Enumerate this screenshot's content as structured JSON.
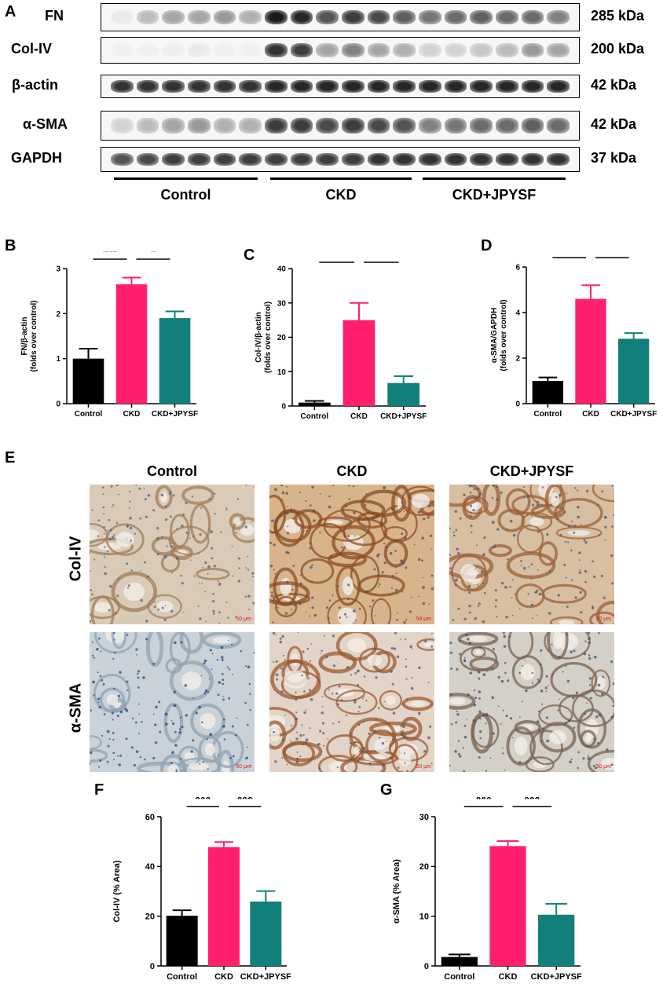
{
  "panels": {
    "A": "A",
    "B": "B",
    "C": "C",
    "D": "D",
    "E": "E",
    "F": "F",
    "G": "G"
  },
  "western": {
    "rows": [
      {
        "label": "FN",
        "kda": "285 kDa",
        "intensity": [
          0.05,
          0.25,
          0.35,
          0.35,
          0.4,
          0.3,
          0.95,
          0.9,
          0.7,
          0.8,
          0.75,
          0.65,
          0.55,
          0.6,
          0.65,
          0.6,
          0.6,
          0.5
        ]
      },
      {
        "label": "Col-IV",
        "kda": "200 kDa",
        "intensity": [
          0.02,
          0.02,
          0.03,
          0.05,
          0.02,
          0.02,
          0.85,
          0.8,
          0.35,
          0.5,
          0.35,
          0.3,
          0.15,
          0.15,
          0.2,
          0.25,
          0.4,
          0.35
        ]
      },
      {
        "label": "β-actin",
        "kda": "42 kDa",
        "intensity": [
          0.85,
          0.85,
          0.85,
          0.85,
          0.85,
          0.85,
          0.9,
          0.9,
          0.9,
          0.9,
          0.9,
          0.9,
          0.9,
          0.9,
          0.9,
          0.9,
          0.9,
          0.9
        ]
      },
      {
        "label": "α-SMA",
        "kda": "42 kDa",
        "intensity": [
          0.15,
          0.25,
          0.35,
          0.4,
          0.3,
          0.3,
          0.8,
          0.8,
          0.75,
          0.8,
          0.75,
          0.7,
          0.5,
          0.55,
          0.6,
          0.6,
          0.65,
          0.6
        ]
      },
      {
        "label": "GAPDH",
        "kda": "37 kDa",
        "intensity": [
          0.7,
          0.75,
          0.8,
          0.8,
          0.8,
          0.8,
          0.8,
          0.8,
          0.8,
          0.8,
          0.85,
          0.85,
          0.85,
          0.85,
          0.85,
          0.85,
          0.85,
          0.85
        ]
      }
    ],
    "groups": [
      "Control",
      "CKD",
      "CKD+JPYSF"
    ]
  },
  "ihc": {
    "columns": [
      "Control",
      "CKD",
      "CKD+JPYSF"
    ],
    "rows": [
      "Col-IV",
      "α-SMA"
    ],
    "scale_label": "50 μm"
  },
  "colors": {
    "Control": "#000000",
    "CKD": "#ff1f6e",
    "CKD+JPYSF": "#11807a"
  },
  "chart_data": [
    {
      "panel": "B",
      "type": "bar",
      "categories": [
        "Control",
        "CKD",
        "CKD+JPYSF"
      ],
      "values": [
        1.0,
        2.65,
        1.9
      ],
      "errors": [
        0.22,
        0.15,
        0.15
      ],
      "ylabel": "FN/β-actin\n(folds over control)",
      "ylim": [
        0,
        3
      ],
      "yticks": [
        0,
        1,
        2,
        3
      ],
      "significance": [
        {
          "from": 0,
          "to": 1,
          "label": "***"
        },
        {
          "from": 1,
          "to": 2,
          "label": "*"
        }
      ]
    },
    {
      "panel": "C",
      "type": "bar",
      "categories": [
        "Control",
        "CKD",
        "CKD+JPYSF"
      ],
      "values": [
        1.0,
        25.0,
        6.7
      ],
      "errors": [
        0.5,
        5.0,
        2.0
      ],
      "ylabel": "Col-IV/β-actin\n(folds over control)",
      "ylim": [
        0,
        40
      ],
      "yticks": [
        0,
        10,
        20,
        30,
        40
      ],
      "significance": [
        {
          "from": 0,
          "to": 1,
          "label": "***"
        },
        {
          "from": 1,
          "to": 2,
          "label": "**"
        }
      ]
    },
    {
      "panel": "D",
      "type": "bar",
      "categories": [
        "Control",
        "CKD",
        "CKD+JPYSF"
      ],
      "values": [
        1.0,
        4.6,
        2.85
      ],
      "errors": [
        0.15,
        0.6,
        0.25
      ],
      "ylabel": "α-SMA/GAPDH\n(folds over control)",
      "ylim": [
        0,
        6
      ],
      "yticks": [
        0,
        2,
        4,
        6
      ],
      "significance": [
        {
          "from": 0,
          "to": 1,
          "label": "***"
        },
        {
          "from": 1,
          "to": 2,
          "label": "*"
        }
      ]
    },
    {
      "panel": "F",
      "type": "bar",
      "categories": [
        "Control",
        "CKD",
        "CKD+JPYSF"
      ],
      "values": [
        20.2,
        47.8,
        25.9
      ],
      "errors": [
        2.2,
        2.0,
        4.2
      ],
      "ylabel": "Col-IV (% Area)",
      "ylim": [
        0,
        60
      ],
      "yticks": [
        0,
        20,
        40,
        60
      ],
      "significance": [
        {
          "from": 0,
          "to": 1,
          "label": "***"
        },
        {
          "from": 1,
          "to": 2,
          "label": "***"
        }
      ]
    },
    {
      "panel": "G",
      "type": "bar",
      "categories": [
        "Control",
        "CKD",
        "CKD+JPYSF"
      ],
      "values": [
        1.8,
        24.1,
        10.3
      ],
      "errors": [
        0.5,
        1.0,
        2.2
      ],
      "ylabel": "α-SMA (% Area)",
      "ylim": [
        0,
        30
      ],
      "yticks": [
        0,
        10,
        20,
        30
      ],
      "significance": [
        {
          "from": 0,
          "to": 1,
          "label": "***"
        },
        {
          "from": 1,
          "to": 2,
          "label": "***"
        }
      ]
    }
  ]
}
